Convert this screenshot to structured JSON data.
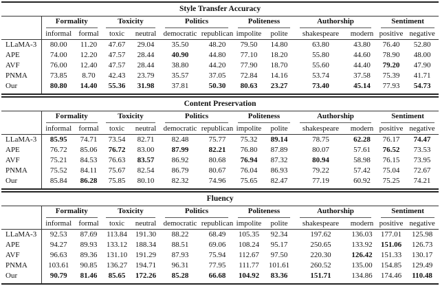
{
  "groups": [
    "Formality",
    "Toxicity",
    "Politics",
    "Politeness",
    "Authorship",
    "Sentiment"
  ],
  "subcolumns": [
    "informal",
    "formal",
    "toxic",
    "neutral",
    "democratic",
    "republican",
    "impolite",
    "polite",
    "shakespeare",
    "modern",
    "positive",
    "negative"
  ],
  "sections": [
    {
      "title": "Style Transfer Accuracy",
      "rows": [
        {
          "model": "LLaMA-3",
          "values": [
            "80.00",
            "11.20",
            "47.67",
            "29.04",
            "35.50",
            "48.20",
            "79.50",
            "14.80",
            "63.80",
            "43.80",
            "76.40",
            "52.80"
          ],
          "bold": []
        },
        {
          "model": "APE",
          "values": [
            "74.00",
            "12.20",
            "47.57",
            "28.44",
            "40.90",
            "44.80",
            "77.10",
            "18.20",
            "55.80",
            "44.60",
            "78.90",
            "48.00"
          ],
          "bold": [
            4
          ]
        },
        {
          "model": "AVF",
          "values": [
            "76.00",
            "12.40",
            "47.57",
            "28.44",
            "38.80",
            "44.20",
            "77.90",
            "18.70",
            "55.60",
            "44.40",
            "79.20",
            "47.90"
          ],
          "bold": [
            10
          ]
        },
        {
          "model": "PNMA",
          "values": [
            "73.85",
            "8.70",
            "42.43",
            "23.79",
            "35.57",
            "37.05",
            "72.84",
            "14.16",
            "53.74",
            "37.58",
            "75.39",
            "41.71"
          ],
          "bold": []
        },
        {
          "model": "Our",
          "values": [
            "80.80",
            "14.40",
            "55.36",
            "31.98",
            "37.81",
            "50.30",
            "80.63",
            "23.27",
            "73.40",
            "45.14",
            "77.93",
            "54.73"
          ],
          "bold": [
            0,
            1,
            2,
            3,
            5,
            6,
            7,
            8,
            9,
            11
          ]
        }
      ]
    },
    {
      "title": "Content Preservation",
      "rows": [
        {
          "model": "LLaMA-3",
          "values": [
            "85.95",
            "74.71",
            "73.54",
            "82.71",
            "82.48",
            "75.77",
            "75.32",
            "89.14",
            "78.75",
            "62.28",
            "76.17",
            "74.47"
          ],
          "bold": [
            0,
            7,
            9,
            11
          ]
        },
        {
          "model": "APE",
          "values": [
            "76.72",
            "85.06",
            "76.72",
            "83.00",
            "87.99",
            "82.21",
            "76.80",
            "87.89",
            "80.07",
            "57.61",
            "76.52",
            "73.53"
          ],
          "bold": [
            2,
            4,
            5,
            10
          ]
        },
        {
          "model": "AVF",
          "values": [
            "75.21",
            "84.53",
            "76.63",
            "83.57",
            "86.92",
            "80.68",
            "76.94",
            "87.32",
            "80.94",
            "58.98",
            "76.15",
            "73.95"
          ],
          "bold": [
            3,
            6,
            8
          ]
        },
        {
          "model": "PNMA",
          "values": [
            "75.52",
            "84.11",
            "75.67",
            "82.54",
            "86.79",
            "80.67",
            "76.04",
            "86.93",
            "79.22",
            "57.42",
            "75.04",
            "72.67"
          ],
          "bold": []
        },
        {
          "model": "Our",
          "values": [
            "85.84",
            "86.28",
            "75.85",
            "80.10",
            "82.32",
            "74.96",
            "75.65",
            "82.47",
            "77.19",
            "60.92",
            "75.25",
            "74.21"
          ],
          "bold": [
            1
          ]
        }
      ]
    },
    {
      "title": "Fluency",
      "rows": [
        {
          "model": "LLaMA-3",
          "values": [
            "92.53",
            "87.69",
            "113.84",
            "191.30",
            "88.22",
            "68.49",
            "105.35",
            "92.34",
            "197.62",
            "136.03",
            "177.01",
            "125.98"
          ],
          "bold": []
        },
        {
          "model": "APE",
          "values": [
            "94.27",
            "89.93",
            "133.12",
            "188.34",
            "88.51",
            "69.06",
            "108.24",
            "95.17",
            "250.65",
            "133.92",
            "151.06",
            "126.73"
          ],
          "bold": [
            10
          ]
        },
        {
          "model": "AVF",
          "values": [
            "96.63",
            "89.36",
            "131.10",
            "191.29",
            "87.93",
            "75.94",
            "112.67",
            "97.50",
            "220.30",
            "126.42",
            "151.33",
            "130.17"
          ],
          "bold": [
            9
          ]
        },
        {
          "model": "PNMA",
          "values": [
            "103.61",
            "90.85",
            "136.27",
            "194.71",
            "96.31",
            "77.95",
            "111.77",
            "101.61",
            "260.52",
            "135.00",
            "154.85",
            "129.49"
          ],
          "bold": []
        },
        {
          "model": "Our",
          "values": [
            "90.79",
            "81.46",
            "85.65",
            "172.26",
            "85.28",
            "66.68",
            "104.92",
            "83.36",
            "151.71",
            "134.86",
            "174.46",
            "110.48"
          ],
          "bold": [
            0,
            1,
            2,
            3,
            4,
            5,
            6,
            7,
            8,
            11
          ]
        }
      ]
    }
  ]
}
